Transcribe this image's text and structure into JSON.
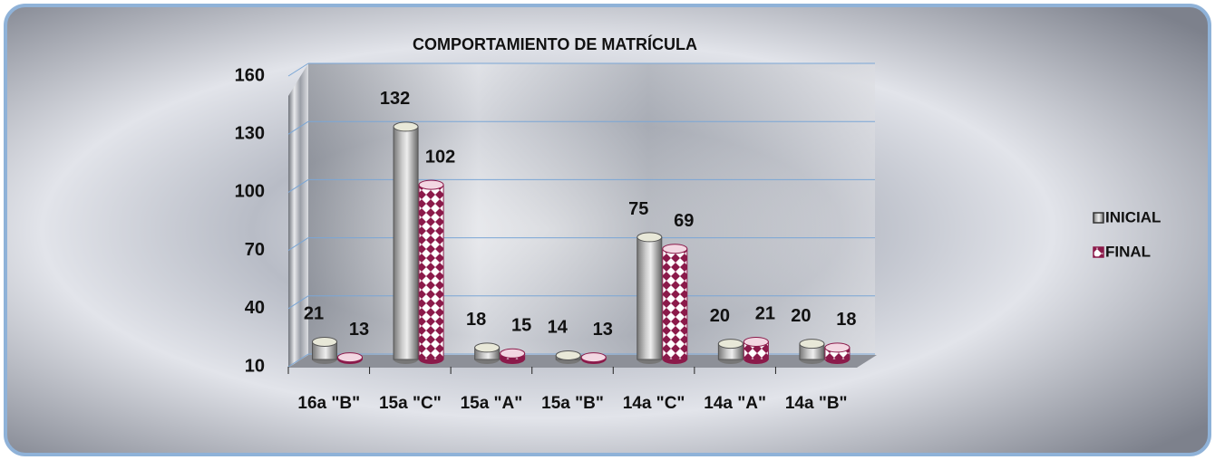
{
  "chart_data": {
    "type": "bar",
    "title": "COMPORTAMIENTO DE MATRÍCULA",
    "categories": [
      "16a \"B\"",
      "15a \"C\"",
      "15a \"A\"",
      "15a \"B\"",
      "14a \"C\"",
      "14a \"A\"",
      "14a \"B\""
    ],
    "series": [
      {
        "name": "INICIAL",
        "color": "#9a9a9a",
        "values": [
          21,
          132,
          18,
          14,
          75,
          20,
          20
        ]
      },
      {
        "name": "FINAL",
        "color": "#8b1a4a",
        "values": [
          13,
          102,
          15,
          13,
          69,
          21,
          18
        ]
      }
    ],
    "ylim": [
      10,
      160
    ],
    "yticks": [
      10,
      40,
      70,
      100,
      130,
      160
    ],
    "grid": true,
    "legend": "right"
  }
}
